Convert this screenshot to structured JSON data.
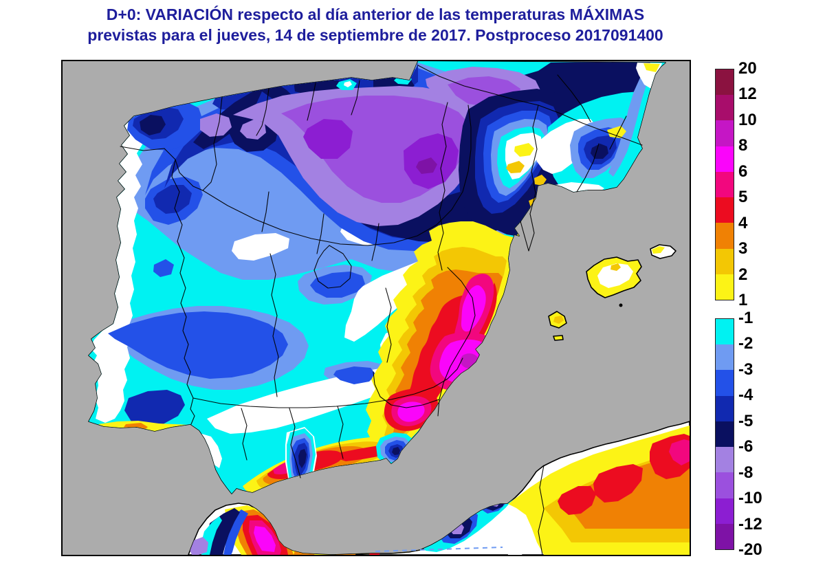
{
  "title": {
    "line1": "D+0:  VARIACIÓN respecto al día anterior de las temperaturas MÁXIMAS",
    "line2": "previstas para el jueves, 14 de septiembre de 2017. Postproceso 2017091400",
    "color": "#1E1E9C"
  },
  "legend": {
    "positive": {
      "labels": [
        "20",
        "12",
        "10",
        "8",
        "6",
        "5",
        "4",
        "3",
        "2",
        "1"
      ],
      "segments": [
        "p9",
        "p8",
        "p7",
        "p6",
        "p5",
        "p4",
        "p3",
        "p2",
        "p1"
      ]
    },
    "negative": {
      "labels": [
        "-1",
        "-2",
        "-3",
        "-4",
        "-5",
        "-6",
        "-8",
        "-10",
        "-12",
        "-20"
      ],
      "segments": [
        "m1",
        "m2",
        "m3",
        "m4",
        "m5",
        "m6",
        "m7",
        "m8",
        "m9"
      ]
    },
    "text_color": "#000000"
  },
  "palette": {
    "p1": "#FCF316",
    "p2": "#F3C704",
    "p3": "#F08104",
    "p4": "#EC0C20",
    "p5": "#F2077E",
    "p6": "#FA05FA",
    "p7": "#C516C5",
    "p8": "#A80D6B",
    "p9": "#8B1240",
    "m1": "#00F2F2",
    "m2": "#6F9BF2",
    "m3": "#2351E8",
    "m4": "#1129B0",
    "m5": "#0A1060",
    "m6": "#A381E2",
    "m7": "#9B50DE",
    "m8": "#8C1ED2",
    "m9": "#7E12A6",
    "land": "#FFFFFF",
    "sea": "#ACACAC"
  },
  "map": {
    "sea": "#ACACAC",
    "land": "#FFFFFF",
    "coastline": "#000000",
    "frame": "#000000"
  },
  "chart_data": {
    "type": "filled_contour_map",
    "title": "Variación respecto al día anterior de las temperaturas máximas (°C), jueves 14-09-2017",
    "legend_levels_positive": [
      1,
      2,
      3,
      4,
      5,
      6,
      8,
      10,
      12,
      20
    ],
    "legend_levels_negative": [
      -1,
      -2,
      -3,
      -4,
      -5,
      -6,
      -8,
      -10,
      -12,
      -20
    ],
    "legend_position": "right",
    "regions_summary": [
      {
        "area": "north interior / upper Ebro and Cantabrian range",
        "value_range_c": "-8 to -12"
      },
      {
        "area": "southern France band along Pyrenees",
        "value_range_c": "-5 to -8"
      },
      {
        "area": "northwest (Galicia) coast and mountains",
        "value_range_c": "-3 to -6"
      },
      {
        "area": "Portugal and western meseta",
        "value_range_c": "-1 to -4"
      },
      {
        "area": "central and southern plateau",
        "value_range_c": "0 to -2"
      },
      {
        "area": "east coast Valencia-Alicante-Murcia",
        "value_range_c": "+3 to +8"
      },
      {
        "area": "Malaga coast (Costa del Sol)",
        "value_range_c": "+3 to +6"
      },
      {
        "area": "Balearic Islands",
        "value_range_c": "0 to +2"
      },
      {
        "area": "north Africa: Rif core and Algerian coast",
        "value_range_c": "+4 to +8 with local -4 to -8 pockets"
      }
    ]
  }
}
